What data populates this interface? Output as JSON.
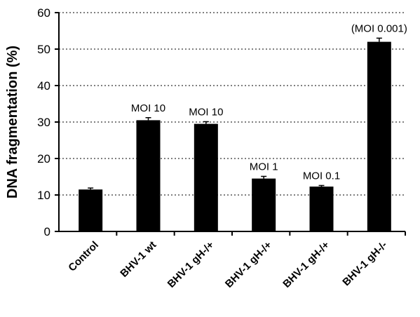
{
  "chart_data": {
    "type": "bar",
    "ylabel": "DNA fragmentation (%)",
    "xlabel": "",
    "ylim": [
      0,
      60
    ],
    "yticks": [
      0,
      10,
      20,
      30,
      40,
      50,
      60
    ],
    "grid": "horizontal-dotted",
    "bar_color": "#000000",
    "categories": [
      "Control",
      "BHV-1 wt",
      "BHV-1 gH-/+",
      "BHV-1 gH-/+",
      "BHV-1 gH-/+",
      "BHV-1 gH-/-"
    ],
    "values": [
      11.5,
      30.5,
      29.5,
      14.5,
      12.3,
      52
    ],
    "errors": [
      0.4,
      0.7,
      0.6,
      0.6,
      0.3,
      1.0
    ],
    "annotations": [
      "",
      "MOI 10",
      "MOI 10",
      "MOI 1",
      "MOI 0.1",
      "(MOI 0.001)"
    ]
  }
}
